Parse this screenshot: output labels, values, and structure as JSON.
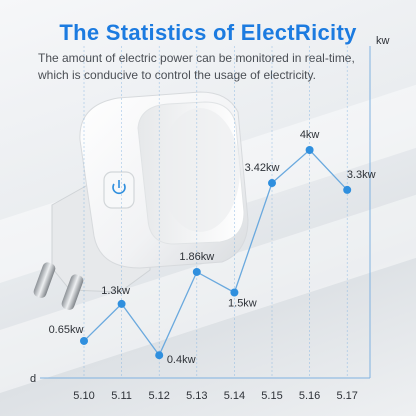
{
  "header": {
    "title": "The Statistics of ElectRicity",
    "subtitle_line1": "The amount of electric power can be monitored in real-time,",
    "subtitle_line2": "which is conducive to control the usage of electricity."
  },
  "product": {
    "icon": "smart-plug-icon",
    "button_icon": "power-icon"
  },
  "colors": {
    "title": "#1c7be0",
    "line": "#6aa9de",
    "point": "#2f8fde",
    "axis": "#7fb1e0"
  },
  "chart_data": {
    "type": "line",
    "title": "",
    "xlabel": "d",
    "ylabel": "kw",
    "categories": [
      "5.10",
      "5.11",
      "5.12",
      "5.13",
      "5.14",
      "5.15",
      "5.16",
      "5.17"
    ],
    "series": [
      {
        "values": [
          0.65,
          1.3,
          0.4,
          1.86,
          1.5,
          3.42,
          4.0,
          3.3
        ],
        "labels": [
          "0.65kw",
          "1.3kw",
          "0.4kw",
          "1.86kw",
          "1.5kw",
          "3.42kw",
          "4kw",
          "3.3kw"
        ]
      }
    ],
    "ylim": [
      0,
      6
    ],
    "grid": "vertical",
    "legend": "none"
  }
}
